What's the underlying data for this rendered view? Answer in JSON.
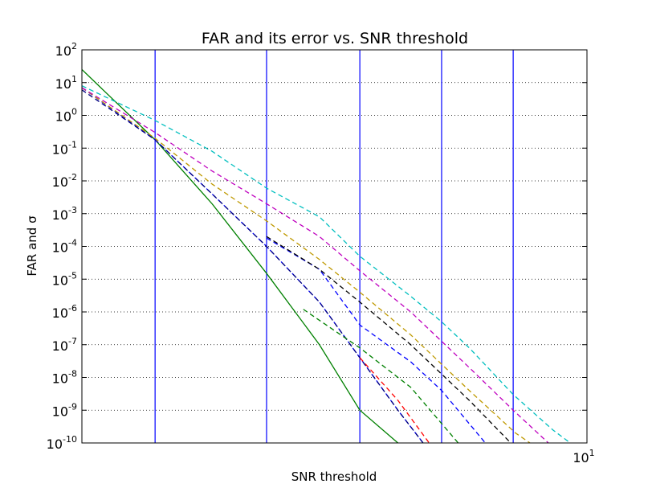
{
  "chart_data": {
    "type": "line",
    "title": "FAR and its error vs. SNR threshold",
    "xlabel": "SNR threshold",
    "ylabel": "FAR and σ",
    "x_scale": "log",
    "y_scale": "log",
    "xlim": [
      2.91,
      10.0
    ],
    "ylim": [
      1e-10,
      100
    ],
    "grid": "y-dotted",
    "x_ticks": [
      {
        "value": 10,
        "base": "10",
        "exp": "1"
      }
    ],
    "y_ticks": [
      {
        "value": 1e-10,
        "base": "10",
        "exp": "-10"
      },
      {
        "value": 1e-09,
        "base": "10",
        "exp": "-9"
      },
      {
        "value": 1e-08,
        "base": "10",
        "exp": "-8"
      },
      {
        "value": 1e-07,
        "base": "10",
        "exp": "-7"
      },
      {
        "value": 1e-06,
        "base": "10",
        "exp": "-6"
      },
      {
        "value": 1e-05,
        "base": "10",
        "exp": "-5"
      },
      {
        "value": 0.0001,
        "base": "10",
        "exp": "-4"
      },
      {
        "value": 0.001,
        "base": "10",
        "exp": "-3"
      },
      {
        "value": 0.01,
        "base": "10",
        "exp": "-2"
      },
      {
        "value": 0.1,
        "base": "10",
        "exp": "-1"
      },
      {
        "value": 1,
        "base": "10",
        "exp": "0"
      },
      {
        "value": 10,
        "base": "10",
        "exp": "1"
      },
      {
        "value": 100,
        "base": "10",
        "exp": "2"
      }
    ],
    "vlines": {
      "color": "#0000ff",
      "x": [
        3.48,
        4.57,
        5.74,
        7.01,
        8.35
      ]
    },
    "series": [
      {
        "color": "#008000",
        "style": "solid",
        "points": [
          [
            2.91,
            25
          ],
          [
            3.48,
            0.18
          ],
          [
            4.0,
            0.002
          ],
          [
            4.57,
            1.5e-05
          ],
          [
            5.2,
            1e-07
          ],
          [
            5.74,
            1e-09
          ],
          [
            6.3,
            1e-10
          ]
        ]
      },
      {
        "color": "#0000ff",
        "style": "dashed",
        "points": [
          [
            2.91,
            7
          ],
          [
            3.48,
            0.18
          ],
          [
            4.0,
            0.004
          ],
          [
            4.57,
            0.0001
          ],
          [
            5.2,
            2e-06
          ],
          [
            5.74,
            4e-08
          ],
          [
            6.3,
            1e-09
          ],
          [
            6.7,
            1e-10
          ]
        ]
      },
      {
        "color": "#000080",
        "style": "dashed",
        "points": [
          [
            2.91,
            6
          ],
          [
            3.48,
            0.18
          ],
          [
            4.0,
            0.004
          ],
          [
            4.57,
            0.0001
          ],
          [
            5.2,
            2e-06
          ],
          [
            5.74,
            4e-08
          ],
          [
            6.3,
            1e-09
          ],
          [
            6.7,
            1e-10
          ]
        ]
      },
      {
        "color": "#ff0000",
        "style": "dashed",
        "points": [
          [
            5.74,
            4e-08
          ],
          [
            6.3,
            2e-09
          ],
          [
            6.8,
            1e-10
          ]
        ]
      },
      {
        "color": "#008000",
        "style": "dashed",
        "points": [
          [
            5.0,
            1.2e-06
          ],
          [
            5.74,
            8e-08
          ],
          [
            6.5,
            5e-09
          ],
          [
            7.3,
            1e-10
          ]
        ]
      },
      {
        "color": "#0000ff",
        "style": "dashed",
        "points": [
          [
            4.57,
            0.00018
          ],
          [
            5.2,
            2e-05
          ],
          [
            5.74,
            4e-07
          ],
          [
            6.5,
            3e-08
          ],
          [
            7.01,
            4e-09
          ],
          [
            7.8,
            1e-10
          ]
        ]
      },
      {
        "color": "#000000",
        "style": "dashed",
        "points": [
          [
            4.57,
            0.0002
          ],
          [
            5.2,
            2e-05
          ],
          [
            5.74,
            2e-06
          ],
          [
            6.5,
            1e-07
          ],
          [
            7.5,
            2e-09
          ],
          [
            8.3,
            1e-10
          ]
        ]
      },
      {
        "color": "#bf9900",
        "style": "dashed",
        "points": [
          [
            2.91,
            7
          ],
          [
            3.48,
            0.2
          ],
          [
            4.0,
            0.008
          ],
          [
            4.57,
            0.0006
          ],
          [
            5.2,
            4e-05
          ],
          [
            5.74,
            4e-06
          ],
          [
            6.5,
            2e-07
          ],
          [
            7.5,
            4e-09
          ],
          [
            8.4,
            2e-10
          ],
          [
            8.7,
            1e-10
          ]
        ]
      },
      {
        "color": "#bf00bf",
        "style": "dashed",
        "points": [
          [
            2.91,
            7
          ],
          [
            3.48,
            0.3
          ],
          [
            4.0,
            0.02
          ],
          [
            4.57,
            0.002
          ],
          [
            5.2,
            0.0002
          ],
          [
            5.74,
            1.8e-05
          ],
          [
            6.5,
            1e-06
          ],
          [
            7.5,
            2e-08
          ],
          [
            8.35,
            1e-09
          ],
          [
            9.1,
            1e-10
          ]
        ]
      },
      {
        "color": "#00bfbf",
        "style": "dashed",
        "points": [
          [
            2.91,
            8
          ],
          [
            3.48,
            0.7
          ],
          [
            4.0,
            0.08
          ],
          [
            4.57,
            0.006
          ],
          [
            5.2,
            0.0008
          ],
          [
            5.74,
            5e-05
          ],
          [
            6.5,
            3e-06
          ],
          [
            7.01,
            5e-07
          ],
          [
            7.5,
            8e-08
          ],
          [
            8.35,
            3e-09
          ],
          [
            9.2,
            2.5e-10
          ],
          [
            9.6,
            1e-10
          ]
        ]
      }
    ]
  }
}
